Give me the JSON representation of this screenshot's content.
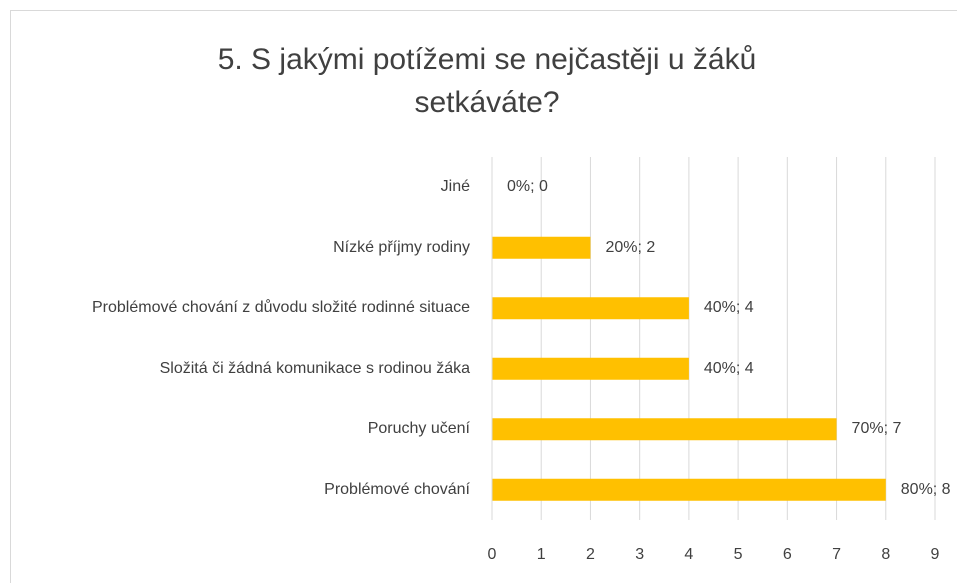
{
  "chart_data": {
    "type": "bar",
    "orientation": "horizontal",
    "title": "5. S jakými potížemi se nejčastěji u žáků setkáváte?",
    "categories": [
      "Jiné",
      "Nízké příjmy rodiny",
      "Problémové chování z důvodu složité rodinné situace",
      "Složitá či žádná komunikace s rodinou žáka",
      "Poruchy učení",
      "Problémové chování"
    ],
    "values": [
      0,
      2,
      4,
      4,
      7,
      8
    ],
    "value_labels": [
      "0%; 0",
      "20%; 2",
      "40%; 4",
      "40%; 4",
      "70%; 7",
      "80%; 8"
    ],
    "color": "#ffc000",
    "xlim": [
      0,
      9
    ],
    "xticks": [
      0,
      1,
      2,
      3,
      4,
      5,
      6,
      7,
      8,
      9
    ],
    "grid": true
  }
}
